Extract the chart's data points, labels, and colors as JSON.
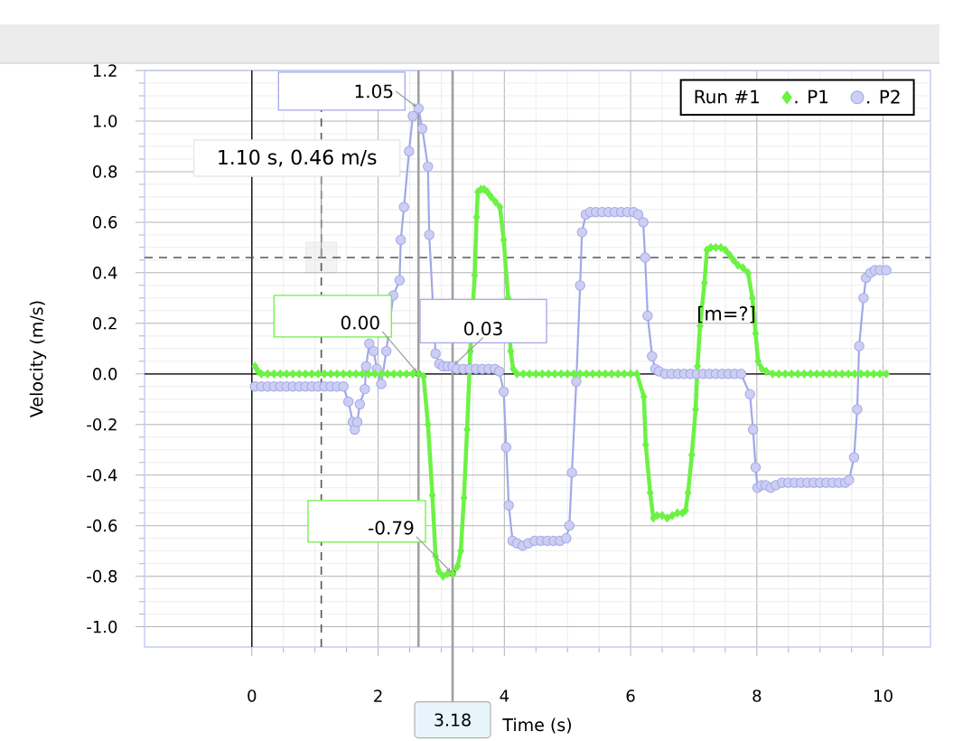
{
  "chart_data": {
    "type": "line",
    "xlabel": "Time (s)",
    "ylabel": "Velocity (m/s)",
    "legend_title": "Run #1",
    "xlim": [
      -1.7,
      10.75
    ],
    "ylim": [
      -1.08,
      1.2
    ],
    "xticks": [
      0,
      2,
      4,
      6,
      8,
      10
    ],
    "yticks": [
      {
        "value": -1.0,
        "label": "-1.0"
      },
      -0.8,
      -0.6,
      -0.4,
      -0.2,
      {
        "value": 0,
        "label": "0.0"
      },
      0.2,
      0.4,
      0.6,
      0.8,
      {
        "value": 1.0,
        "label": "1.0"
      },
      1.2
    ],
    "grid": true,
    "legend": "top right",
    "line_style": "solid",
    "series": [
      {
        "name": ". P1",
        "color": "#6cf244",
        "marker": "diamond",
        "x": [
          0.05,
          0.1,
          0.15,
          0.25,
          0.35,
          0.45,
          0.55,
          0.65,
          0.75,
          0.85,
          0.95,
          1.05,
          1.15,
          1.25,
          1.35,
          1.45,
          1.55,
          1.65,
          1.75,
          1.85,
          1.95,
          2.05,
          2.15,
          2.25,
          2.35,
          2.45,
          2.55,
          2.64,
          2.72,
          2.79,
          2.86,
          2.91,
          2.96,
          3.03,
          3.1,
          3.18,
          3.26,
          3.31,
          3.36,
          3.41,
          3.46,
          3.53,
          3.56,
          3.58,
          3.63,
          3.68,
          3.73,
          3.79,
          3.86,
          3.93,
          3.99,
          4.06,
          4.1,
          4.14,
          4.2,
          4.3,
          4.4,
          4.5,
          4.6,
          4.7,
          4.8,
          4.9,
          5.0,
          5.1,
          5.2,
          5.3,
          5.4,
          5.5,
          5.6,
          5.7,
          5.8,
          5.9,
          6.0,
          6.1,
          6.21,
          6.24,
          6.31,
          6.36,
          6.42,
          6.5,
          6.58,
          6.66,
          6.74,
          6.82,
          6.87,
          6.91,
          6.97,
          7.03,
          7.06,
          7.1,
          7.17,
          7.21,
          7.27,
          7.35,
          7.43,
          7.5,
          7.57,
          7.63,
          7.7,
          7.78,
          7.86,
          7.93,
          7.98,
          8.02,
          8.08,
          8.15,
          8.25,
          8.35,
          8.45,
          8.55,
          8.65,
          8.75,
          8.85,
          8.95,
          9.05,
          9.15,
          9.25,
          9.35,
          9.45,
          9.55,
          9.65,
          9.75,
          9.85,
          9.95,
          10.05
        ],
        "values": [
          0.03,
          0.01,
          0.0,
          0.0,
          0.0,
          0.0,
          0.0,
          0.0,
          0.0,
          0.0,
          0.0,
          0.0,
          0.0,
          0.0,
          0.0,
          0.0,
          0.0,
          0.0,
          0.0,
          0.0,
          0.0,
          0.0,
          0.0,
          0.0,
          0.0,
          0.0,
          0.0,
          0.0,
          -0.01,
          -0.2,
          -0.48,
          -0.72,
          -0.78,
          -0.8,
          -0.79,
          -0.79,
          -0.76,
          -0.7,
          -0.49,
          -0.22,
          0.09,
          0.39,
          0.62,
          0.72,
          0.73,
          0.73,
          0.72,
          0.7,
          0.68,
          0.66,
          0.53,
          0.3,
          0.09,
          0.02,
          0.0,
          0.0,
          0.0,
          0.0,
          0.0,
          0.0,
          0.0,
          0.0,
          0.0,
          0.0,
          0.0,
          0.0,
          0.0,
          0.0,
          0.0,
          0.0,
          0.0,
          0.0,
          0.0,
          0.0,
          -0.09,
          -0.28,
          -0.47,
          -0.57,
          -0.56,
          -0.56,
          -0.57,
          -0.56,
          -0.55,
          -0.55,
          -0.54,
          -0.47,
          -0.32,
          -0.14,
          0.03,
          0.19,
          0.36,
          0.49,
          0.5,
          0.5,
          0.5,
          0.49,
          0.47,
          0.45,
          0.43,
          0.42,
          0.4,
          0.3,
          0.16,
          0.05,
          0.02,
          0.01,
          0.0,
          0.0,
          0.0,
          0.0,
          0.0,
          0.0,
          0.0,
          0.0,
          0.0,
          0.0,
          0.0,
          0.0,
          0.0,
          0.0,
          0.0,
          0.0,
          0.0,
          0.0,
          0.0
        ]
      },
      {
        "name": ". P2",
        "color": "#a3a7e8",
        "marker": "circle",
        "x": [
          0.05,
          0.15,
          0.25,
          0.35,
          0.45,
          0.55,
          0.65,
          0.75,
          0.85,
          0.95,
          1.05,
          1.15,
          1.25,
          1.35,
          1.45,
          1.53,
          1.6,
          1.63,
          1.67,
          1.71,
          1.79,
          1.81,
          1.86,
          1.93,
          1.98,
          2.05,
          2.13,
          2.24,
          2.34,
          2.36,
          2.41,
          2.49,
          2.55,
          2.64,
          2.7,
          2.79,
          2.81,
          2.91,
          2.97,
          3.03,
          3.1,
          3.18,
          3.25,
          3.35,
          3.45,
          3.55,
          3.65,
          3.75,
          3.85,
          3.92,
          3.99,
          4.03,
          4.07,
          4.13,
          4.2,
          4.29,
          4.38,
          4.48,
          4.58,
          4.68,
          4.78,
          4.88,
          4.98,
          5.03,
          5.07,
          5.14,
          5.2,
          5.23,
          5.29,
          5.36,
          5.45,
          5.55,
          5.65,
          5.75,
          5.85,
          5.95,
          6.05,
          6.12,
          6.2,
          6.23,
          6.27,
          6.34,
          6.39,
          6.45,
          6.55,
          6.65,
          6.75,
          6.85,
          6.95,
          7.05,
          7.15,
          7.25,
          7.35,
          7.45,
          7.55,
          7.65,
          7.75,
          7.89,
          7.94,
          7.98,
          8.01,
          8.07,
          8.14,
          8.22,
          8.3,
          8.4,
          8.5,
          8.6,
          8.7,
          8.8,
          8.9,
          9.0,
          9.1,
          9.2,
          9.3,
          9.4,
          9.46,
          9.54,
          9.59,
          9.62,
          9.69,
          9.73,
          9.8,
          9.87,
          9.95,
          10.05
        ],
        "values": [
          -0.05,
          -0.05,
          -0.05,
          -0.05,
          -0.05,
          -0.05,
          -0.05,
          -0.05,
          -0.05,
          -0.05,
          -0.05,
          -0.05,
          -0.05,
          -0.05,
          -0.05,
          -0.11,
          -0.19,
          -0.22,
          -0.19,
          -0.12,
          -0.06,
          0.03,
          0.12,
          0.09,
          0.02,
          -0.04,
          0.09,
          0.31,
          0.37,
          0.53,
          0.66,
          0.88,
          1.02,
          1.05,
          0.97,
          0.82,
          0.55,
          0.08,
          0.04,
          0.03,
          0.03,
          0.03,
          0.02,
          0.02,
          0.02,
          0.02,
          0.02,
          0.02,
          0.02,
          0.01,
          -0.07,
          -0.29,
          -0.52,
          -0.66,
          -0.67,
          -0.68,
          -0.67,
          -0.66,
          -0.66,
          -0.66,
          -0.66,
          -0.66,
          -0.65,
          -0.6,
          -0.39,
          -0.03,
          0.35,
          0.56,
          0.63,
          0.64,
          0.64,
          0.64,
          0.64,
          0.64,
          0.64,
          0.64,
          0.64,
          0.63,
          0.6,
          0.46,
          0.23,
          0.07,
          0.02,
          0.01,
          0.0,
          0.0,
          0.0,
          0.0,
          0.0,
          0.0,
          0.0,
          0.0,
          0.0,
          0.0,
          0.0,
          0.0,
          0.0,
          -0.08,
          -0.22,
          -0.37,
          -0.45,
          -0.44,
          -0.44,
          -0.45,
          -0.44,
          -0.43,
          -0.43,
          -0.43,
          -0.43,
          -0.43,
          -0.43,
          -0.43,
          -0.43,
          -0.43,
          -0.43,
          -0.43,
          -0.42,
          -0.33,
          -0.14,
          0.11,
          0.3,
          0.38,
          0.4,
          0.41,
          0.41,
          0.41
        ]
      }
    ],
    "ref_lines": [
      {
        "axis": "x",
        "value": 1.1,
        "color": "#555555",
        "line_style": "dashed"
      },
      {
        "axis": "y",
        "value": 0.46,
        "color": "#555555",
        "line_style": "dashed"
      },
      {
        "axis": "x",
        "value": 2.64,
        "color": "#a0a0a0",
        "line_style": "solid"
      },
      {
        "axis": "x",
        "value": 3.18,
        "label": "3.18",
        "color": "#a0a0a0",
        "line_style": "solid"
      }
    ],
    "annotations": [
      {
        "text": "1.10 s, 0.46 m/s",
        "x": 1.1,
        "y": 0.46
      },
      {
        "text": "1.05",
        "x": 2.64,
        "y": 1.05
      },
      {
        "text": "0.00",
        "x": 2.64,
        "y": 0.0
      },
      {
        "text": "0.03",
        "x": 3.18,
        "y": 0.03
      },
      {
        "text": "-0.79",
        "x": 3.18,
        "y": -0.79
      },
      "[m=?]"
    ]
  }
}
